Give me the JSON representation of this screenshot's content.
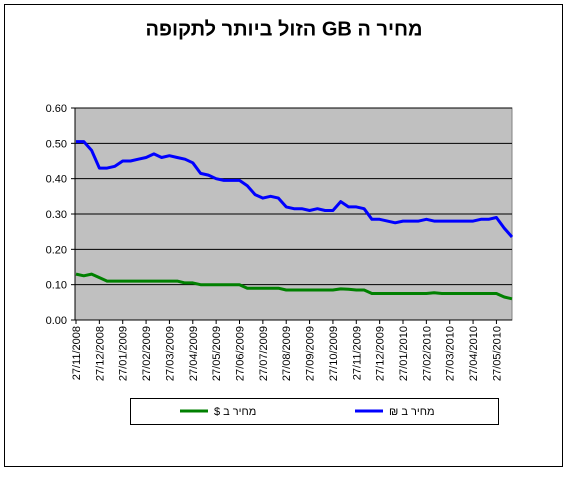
{
  "chart_data": {
    "type": "line",
    "title": "מחיר ה GB הזול ביותר לתקופה",
    "categories": [
      "27/11/2008",
      null,
      null,
      "27/12/2008",
      null,
      null,
      "27/01/2009",
      null,
      null,
      "27/02/2009",
      null,
      null,
      "27/03/2009",
      null,
      null,
      "27/04/2009",
      null,
      null,
      "27/05/2009",
      null,
      null,
      "27/06/2009",
      null,
      null,
      "27/07/2009",
      null,
      null,
      "27/08/2009",
      null,
      null,
      "27/09/2009",
      null,
      null,
      "27/10/2009",
      null,
      null,
      "27/11/2009",
      null,
      null,
      "27/12/2009",
      null,
      null,
      "27/01/2010",
      null,
      null,
      "27/02/2010",
      null,
      null,
      "27/03/2010",
      null,
      null,
      "27/04/2010",
      null,
      null,
      "27/05/2010",
      null,
      null
    ],
    "series": [
      {
        "name": "מחיר ב $",
        "color": "#008000",
        "values": [
          0.13,
          0.125,
          0.13,
          0.12,
          0.11,
          0.11,
          0.11,
          0.11,
          0.11,
          0.11,
          0.11,
          0.11,
          0.11,
          0.11,
          0.105,
          0.105,
          0.1,
          0.1,
          0.1,
          0.1,
          0.1,
          0.1,
          0.09,
          0.09,
          0.09,
          0.09,
          0.09,
          0.085,
          0.085,
          0.085,
          0.085,
          0.085,
          0.085,
          0.085,
          0.088,
          0.087,
          0.085,
          0.085,
          0.075,
          0.075,
          0.075,
          0.075,
          0.075,
          0.075,
          0.075,
          0.075,
          0.077,
          0.075,
          0.075,
          0.075,
          0.075,
          0.075,
          0.075,
          0.075,
          0.075,
          0.065,
          0.06
        ]
      },
      {
        "name": "מחיר ב ₪",
        "color": "#0000ff",
        "values": [
          0.505,
          0.505,
          0.48,
          0.43,
          0.43,
          0.435,
          0.45,
          0.45,
          0.455,
          0.46,
          0.47,
          0.46,
          0.465,
          0.46,
          0.455,
          0.445,
          0.415,
          0.41,
          0.4,
          0.395,
          0.395,
          0.395,
          0.38,
          0.355,
          0.345,
          0.35,
          0.345,
          0.32,
          0.315,
          0.315,
          0.31,
          0.315,
          0.31,
          0.31,
          0.335,
          0.32,
          0.32,
          0.315,
          0.285,
          0.285,
          0.28,
          0.275,
          0.28,
          0.28,
          0.28,
          0.285,
          0.28,
          0.28,
          0.28,
          0.28,
          0.28,
          0.28,
          0.285,
          0.285,
          0.29,
          0.26,
          0.235
        ]
      }
    ],
    "ylim": [
      0,
      0.6
    ],
    "yticks": [
      {
        "value": 0,
        "label": "0.00"
      },
      {
        "value": 0.1,
        "label": "0.10"
      },
      {
        "value": 0.2,
        "label": "0.20"
      },
      {
        "value": 0.3,
        "label": "0.30"
      },
      {
        "value": 0.4,
        "label": "0.40"
      },
      {
        "value": 0.5,
        "label": "0.50"
      },
      {
        "value": 0.6,
        "label": "0.60"
      }
    ],
    "grid": true,
    "legend": "bottom",
    "plot_background": "#c0c0c0"
  }
}
